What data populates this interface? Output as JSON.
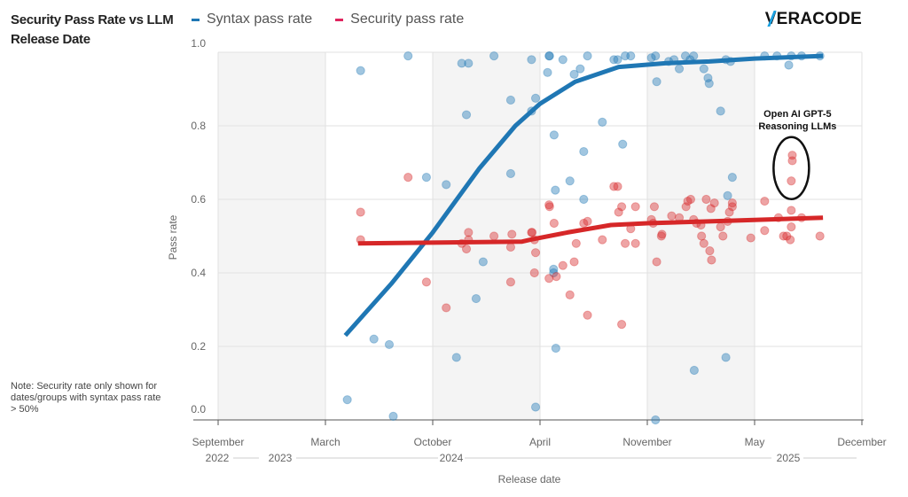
{
  "title": "Security Pass Rate vs LLM Release Date",
  "logo": "VERACODE",
  "note": "Note: Security rate only shown for dates/groups with syntax pass rate > 50%",
  "colors": {
    "syntax": "#1f77b4",
    "security": "#d62728",
    "legend_security": "#e0245e",
    "band": "#f4f4f4",
    "grid": "#e2e2e2"
  },
  "chart_data": {
    "type": "scatter",
    "title": "Security Pass Rate vs LLM Release Date",
    "xlabel": "Release date",
    "ylabel": "Pass rate",
    "ylim": [
      0,
      1
    ],
    "xlim": [
      "2022-09-01",
      "2025-12-01"
    ],
    "grid": true,
    "legend_placement": "top",
    "y_ticks": [
      "0.0",
      "0.2",
      "0.4",
      "0.6",
      "0.8",
      "1.0"
    ],
    "x_ticks": [
      {
        "date": "2022-09-01",
        "label": "September"
      },
      {
        "date": "2023-03-01",
        "label": "March"
      },
      {
        "date": "2023-10-01",
        "label": "October"
      },
      {
        "date": "2024-04-01",
        "label": "April"
      },
      {
        "date": "2024-11-01",
        "label": "November"
      },
      {
        "date": "2025-05-01",
        "label": "May"
      },
      {
        "date": "2025-12-01",
        "label": "December"
      }
    ],
    "year_labels": [
      "2022",
      "2023",
      "2024",
      "2025"
    ],
    "annotation": {
      "text_line1": "Open AI GPT-5",
      "text_line2": "Reasoning LLMs",
      "date": "2025-07-13",
      "y_low": 0.62,
      "y_high": 0.75
    },
    "series": [
      {
        "name": "Syntax pass rate",
        "color": "#1f77b4",
        "points": [
          [
            "2023-04-14",
            0.055
          ],
          [
            "2023-05-10",
            0.95
          ],
          [
            "2023-06-06",
            0.22
          ],
          [
            "2023-07-06",
            0.205
          ],
          [
            "2023-07-14",
            0.01
          ],
          [
            "2023-08-13",
            0.99
          ],
          [
            "2023-09-19",
            0.66
          ],
          [
            "2023-10-24",
            0.64
          ],
          [
            "2023-11-11",
            0.17
          ],
          [
            "2023-11-20",
            0.97
          ],
          [
            "2023-12-01",
            0.97
          ],
          [
            "2023-11-28",
            0.83
          ],
          [
            "2023-12-14",
            0.33
          ],
          [
            "2023-12-26",
            0.43
          ],
          [
            "2024-01-14",
            0.99
          ],
          [
            "2024-02-12",
            0.67
          ],
          [
            "2024-02-12",
            0.87
          ],
          [
            "2024-03-17",
            0.98
          ],
          [
            "2024-03-24",
            0.875
          ],
          [
            "2024-03-24",
            0.035
          ],
          [
            "2024-03-17",
            0.84
          ],
          [
            "2024-04-16",
            0.945
          ],
          [
            "2024-04-19",
            0.99
          ],
          [
            "2024-04-20",
            0.99
          ],
          [
            "2024-04-28",
            0.41
          ],
          [
            "2024-04-28",
            0.4
          ],
          [
            "2024-04-29",
            0.775
          ],
          [
            "2024-05-01",
            0.625
          ],
          [
            "2024-05-02",
            0.195
          ],
          [
            "2024-05-16",
            0.98
          ],
          [
            "2024-05-30",
            0.65
          ],
          [
            "2024-06-08",
            0.94
          ],
          [
            "2024-06-20",
            0.955
          ],
          [
            "2024-06-27",
            0.6
          ],
          [
            "2024-07-04",
            0.99
          ],
          [
            "2024-06-27",
            0.73
          ],
          [
            "2024-08-03",
            0.81
          ],
          [
            "2024-08-26",
            0.98
          ],
          [
            "2024-09-03",
            0.98
          ],
          [
            "2024-09-13",
            0.75
          ],
          [
            "2024-09-29",
            0.99
          ],
          [
            "2024-09-18",
            0.99
          ],
          [
            "2024-11-15",
            0.99
          ],
          [
            "2024-11-17",
            0.92
          ],
          [
            "2024-11-15",
            0.0
          ],
          [
            "2024-11-08",
            0.985
          ],
          [
            "2024-12-07",
            0.975
          ],
          [
            "2024-12-16",
            0.98
          ],
          [
            "2024-12-25",
            0.955
          ],
          [
            "2025-01-05",
            0.99
          ],
          [
            "2025-01-13",
            0.98
          ],
          [
            "2025-01-19",
            0.99
          ],
          [
            "2025-01-20",
            0.135
          ],
          [
            "2025-02-06",
            0.955
          ],
          [
            "2025-02-13",
            0.93
          ],
          [
            "2025-02-15",
            0.915
          ],
          [
            "2025-03-04",
            0.84
          ],
          [
            "2025-03-13",
            0.17
          ],
          [
            "2025-03-24",
            0.66
          ],
          [
            "2025-03-16",
            0.61
          ],
          [
            "2025-03-13",
            0.98
          ],
          [
            "2025-03-21",
            0.975
          ],
          [
            "2025-05-21",
            0.99
          ],
          [
            "2025-06-15",
            0.99
          ],
          [
            "2025-07-08",
            0.965
          ],
          [
            "2025-07-13",
            0.99
          ],
          [
            "2025-08-03",
            0.99
          ],
          [
            "2025-09-09",
            0.99
          ]
        ],
        "trend": [
          [
            "2023-04-10",
            0.23
          ],
          [
            "2023-07-10",
            0.37
          ],
          [
            "2023-10-01",
            0.51
          ],
          [
            "2023-12-20",
            0.685
          ],
          [
            "2024-02-20",
            0.8
          ],
          [
            "2024-04-01",
            0.86
          ],
          [
            "2024-06-10",
            0.92
          ],
          [
            "2024-09-05",
            0.96
          ],
          [
            "2024-12-01",
            0.97
          ],
          [
            "2025-02-15",
            0.975
          ],
          [
            "2025-05-01",
            0.983
          ],
          [
            "2025-09-15",
            0.99
          ]
        ]
      },
      {
        "name": "Security pass rate",
        "color": "#d62728",
        "points": [
          [
            "2023-05-10",
            0.565
          ],
          [
            "2023-05-10",
            0.49
          ],
          [
            "2023-08-13",
            0.66
          ],
          [
            "2023-09-19",
            0.375
          ],
          [
            "2023-10-24",
            0.305
          ],
          [
            "2023-12-01",
            0.51
          ],
          [
            "2023-12-01",
            0.49
          ],
          [
            "2023-11-20",
            0.48
          ],
          [
            "2023-11-28",
            0.465
          ],
          [
            "2024-01-14",
            0.5
          ],
          [
            "2024-02-12",
            0.47
          ],
          [
            "2024-02-12",
            0.375
          ],
          [
            "2024-02-14",
            0.505
          ],
          [
            "2024-03-17",
            0.51
          ],
          [
            "2024-03-18",
            0.51
          ],
          [
            "2024-03-24",
            0.455
          ],
          [
            "2024-03-22",
            0.4
          ],
          [
            "2024-03-22",
            0.49
          ],
          [
            "2024-04-19",
            0.585
          ],
          [
            "2024-04-20",
            0.58
          ],
          [
            "2024-04-29",
            0.535
          ],
          [
            "2024-05-03",
            0.39
          ],
          [
            "2024-04-19",
            0.385
          ],
          [
            "2024-05-16",
            0.42
          ],
          [
            "2024-05-30",
            0.34
          ],
          [
            "2024-06-08",
            0.43
          ],
          [
            "2024-06-12",
            0.48
          ],
          [
            "2024-06-27",
            0.535
          ],
          [
            "2024-07-04",
            0.54
          ],
          [
            "2024-07-04",
            0.285
          ],
          [
            "2024-08-03",
            0.49
          ],
          [
            "2024-08-26",
            0.635
          ],
          [
            "2024-09-03",
            0.635
          ],
          [
            "2024-09-05",
            0.565
          ],
          [
            "2024-09-11",
            0.58
          ],
          [
            "2024-09-18",
            0.48
          ],
          [
            "2024-09-29",
            0.52
          ],
          [
            "2024-10-08",
            0.48
          ],
          [
            "2024-10-08",
            0.58
          ],
          [
            "2024-09-11",
            0.26
          ],
          [
            "2024-11-13",
            0.58
          ],
          [
            "2024-11-11",
            0.535
          ],
          [
            "2024-11-08",
            0.545
          ],
          [
            "2024-11-17",
            0.43
          ],
          [
            "2024-11-25",
            0.5
          ],
          [
            "2024-11-26",
            0.505
          ],
          [
            "2024-12-12",
            0.555
          ],
          [
            "2024-12-25",
            0.55
          ],
          [
            "2025-01-06",
            0.58
          ],
          [
            "2025-01-09",
            0.595
          ],
          [
            "2025-01-14",
            0.6
          ],
          [
            "2025-01-19",
            0.545
          ],
          [
            "2025-01-24",
            0.535
          ],
          [
            "2025-02-02",
            0.5
          ],
          [
            "2025-02-10",
            0.6
          ],
          [
            "2025-02-01",
            0.53
          ],
          [
            "2025-02-06",
            0.48
          ],
          [
            "2025-02-18",
            0.575
          ],
          [
            "2025-02-24",
            0.59
          ],
          [
            "2025-02-16",
            0.46
          ],
          [
            "2025-02-19",
            0.435
          ],
          [
            "2025-03-04",
            0.525
          ],
          [
            "2025-03-08",
            0.5
          ],
          [
            "2025-03-16",
            0.54
          ],
          [
            "2025-03-19",
            0.565
          ],
          [
            "2025-03-24",
            0.58
          ],
          [
            "2025-03-24",
            0.59
          ],
          [
            "2025-04-25",
            0.495
          ],
          [
            "2025-05-21",
            0.595
          ],
          [
            "2025-05-21",
            0.515
          ],
          [
            "2025-06-18",
            0.55
          ],
          [
            "2025-07-13",
            0.57
          ],
          [
            "2025-07-13",
            0.525
          ],
          [
            "2025-06-28",
            0.5
          ],
          [
            "2025-07-04",
            0.5
          ],
          [
            "2025-07-11",
            0.49
          ],
          [
            "2025-07-15",
            0.72
          ],
          [
            "2025-07-15",
            0.705
          ],
          [
            "2025-07-13",
            0.65
          ],
          [
            "2025-08-03",
            0.55
          ],
          [
            "2025-09-09",
            0.5
          ]
        ],
        "trend": [
          [
            "2023-05-05",
            0.48
          ],
          [
            "2024-03-01",
            0.485
          ],
          [
            "2024-03-15",
            0.49
          ],
          [
            "2024-05-25",
            0.51
          ],
          [
            "2024-08-20",
            0.53
          ],
          [
            "2024-11-01",
            0.535
          ],
          [
            "2025-02-15",
            0.54
          ],
          [
            "2025-09-15",
            0.55
          ]
        ]
      }
    ]
  }
}
